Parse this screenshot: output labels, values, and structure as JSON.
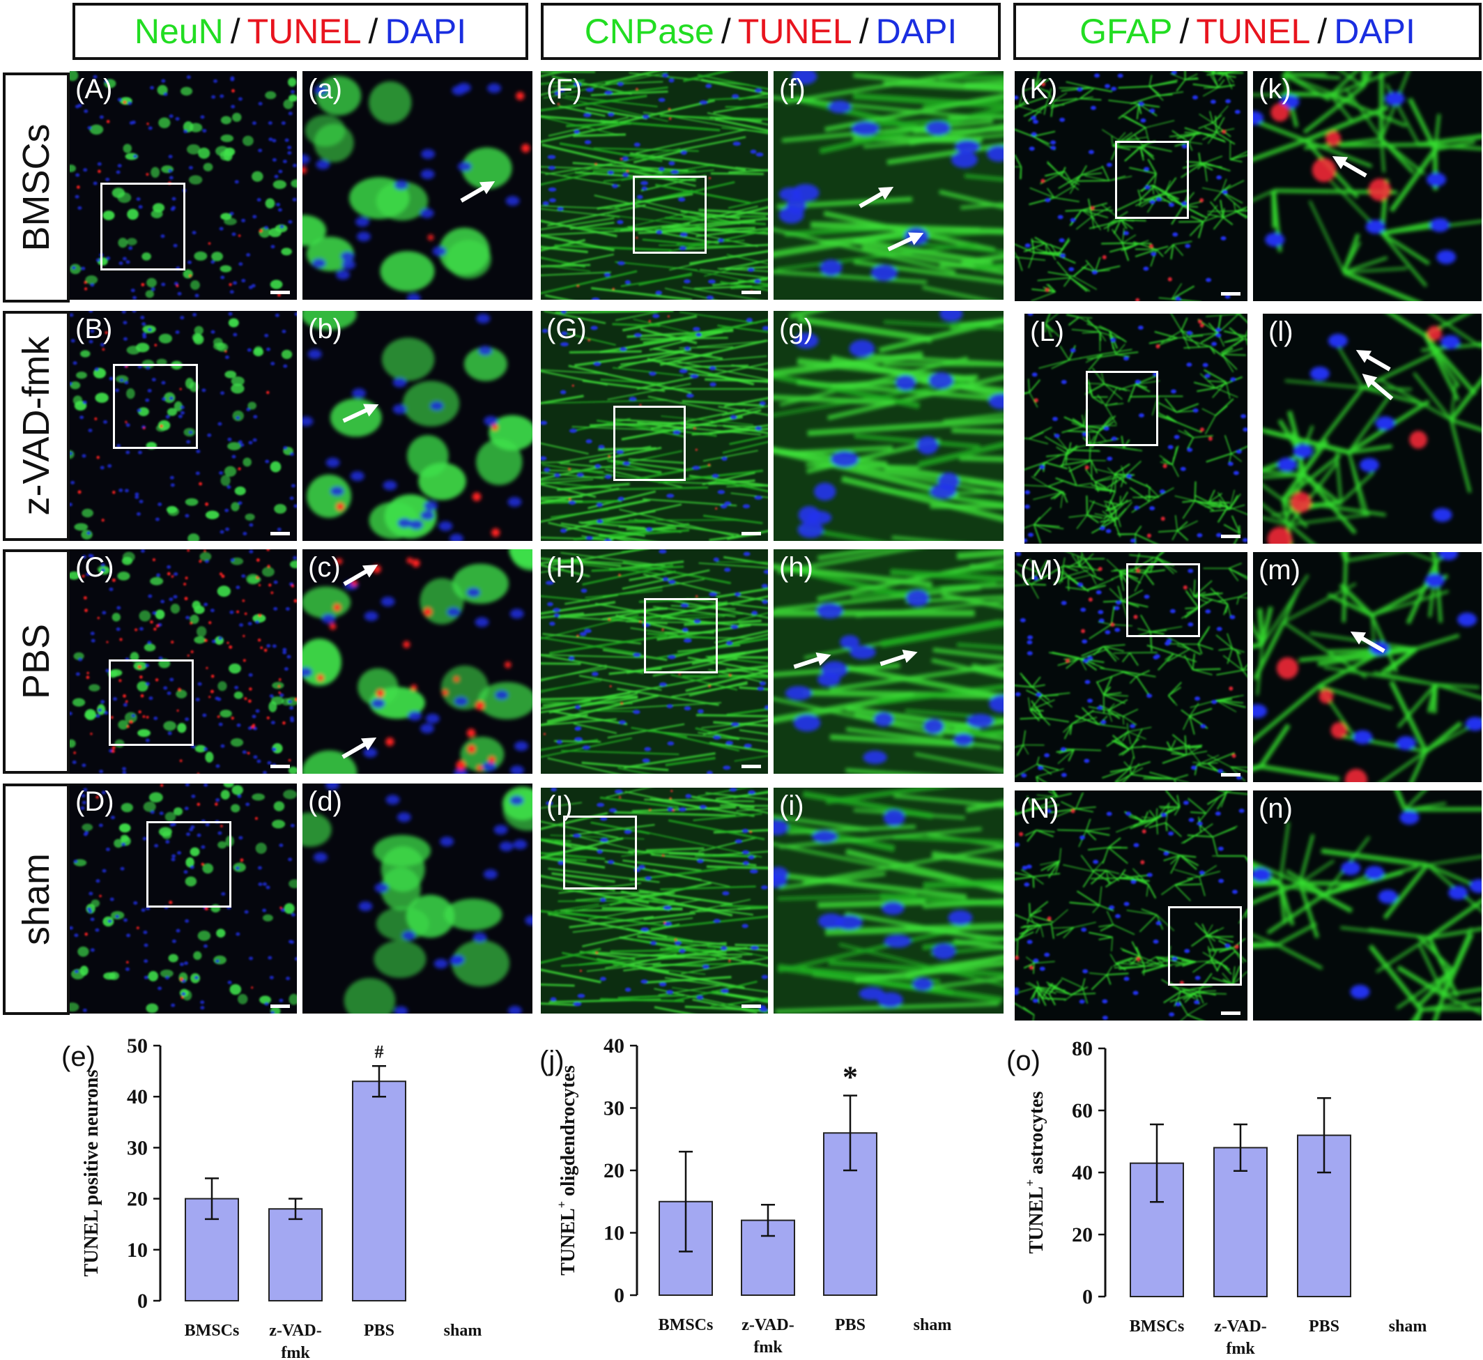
{
  "headers": [
    {
      "green": "NeuN",
      "red": "TUNEL",
      "blue": "DAPI",
      "sep": "/"
    },
    {
      "green": "CNPase",
      "red": "TUNEL",
      "blue": "DAPI",
      "sep": "/"
    },
    {
      "green": "GFAP",
      "red": "TUNEL",
      "blue": "DAPI",
      "sep": "/"
    }
  ],
  "row_labels": [
    "BMSCs",
    "z-VAD-fmk",
    "PBS",
    "sham"
  ],
  "panel_labels": {
    "A": "(A)",
    "a": "(a)",
    "F": "(F)",
    "f": "(f)",
    "K": "(K)",
    "k": "(k)",
    "B": "(B)",
    "b": "(b)",
    "G": "(G)",
    "g": "(g)",
    "L": "(L)",
    "l": "(l)",
    "C": "(C)",
    "c": "(c)",
    "H": "(H)",
    "h": "(h)",
    "M": "(M)",
    "m": "(m)",
    "D": "(D)",
    "d": "(d)",
    "I": "(I)",
    "i": "(i)",
    "N": "(N)",
    "n": "(n)"
  },
  "colors": {
    "green": "#22dd22",
    "red": "#e8141e",
    "blue": "#1a2ee0",
    "bar_fill": "#a3a8f2",
    "bar_stroke": "#222222"
  },
  "charts": {
    "e": {
      "label": "(e)"
    },
    "j": {
      "label": "(j)"
    },
    "o": {
      "label": "(o)"
    }
  },
  "chart_data": [
    {
      "type": "bar",
      "panel": "(e)",
      "categories": [
        "BMSCs",
        "z-VAD-fmk",
        "PBS",
        "sham"
      ],
      "values": [
        20,
        18,
        43,
        0
      ],
      "errors": [
        4,
        2,
        3,
        0
      ],
      "annotations": [
        "",
        "",
        "#",
        ""
      ],
      "ylabel": "TUNEL positive neurons",
      "ylim": [
        0,
        50
      ],
      "yticks": [
        0,
        10,
        20,
        30,
        40,
        50
      ]
    },
    {
      "type": "bar",
      "panel": "(j)",
      "categories": [
        "BMSCs",
        "z-VAD-fmk",
        "PBS",
        "sham"
      ],
      "values": [
        15,
        12,
        26,
        0
      ],
      "errors": [
        8,
        2.5,
        6,
        0
      ],
      "annotations": [
        "",
        "",
        "*",
        ""
      ],
      "ylabel": "TUNEL+ oligdendrocytes",
      "ylim": [
        0,
        40
      ],
      "yticks": [
        0,
        10,
        20,
        30,
        40
      ]
    },
    {
      "type": "bar",
      "panel": "(o)",
      "categories": [
        "BMSCs",
        "z-VAD-fmk",
        "PBS",
        "sham"
      ],
      "values": [
        43,
        48,
        52,
        0
      ],
      "errors": [
        12.5,
        7.5,
        12,
        0
      ],
      "annotations": [
        "",
        "",
        "",
        ""
      ],
      "ylabel": "TUNEL+ astrocytes",
      "ylim": [
        0,
        80
      ],
      "yticks": [
        0,
        20,
        40,
        60,
        80
      ]
    }
  ]
}
